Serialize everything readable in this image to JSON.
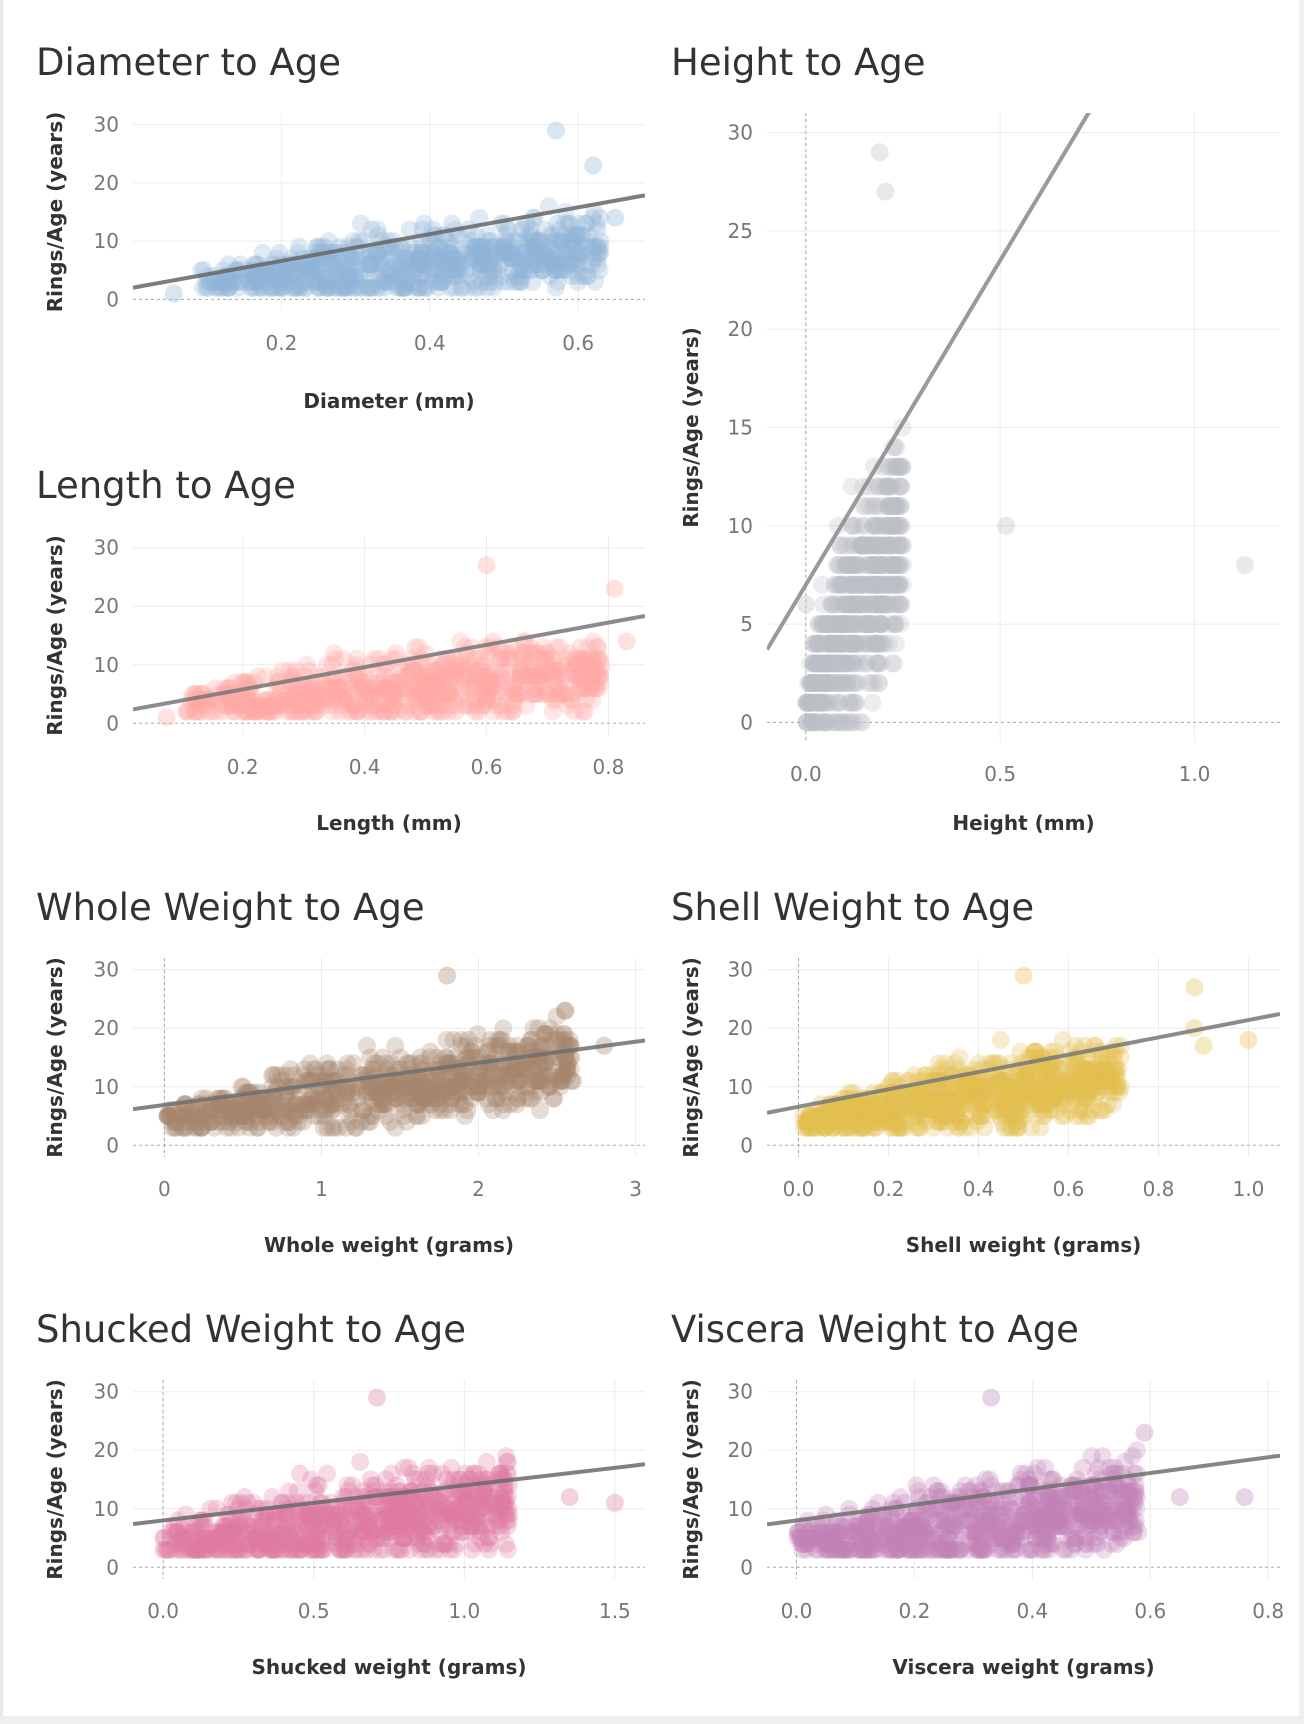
{
  "chart_data": [
    {
      "id": "diameter",
      "type": "scatter",
      "title": "Diameter to Age",
      "xlabel": "Diameter (mm)",
      "ylabel": "Rings/Age (years)",
      "xlim": [
        0.0,
        0.69
      ],
      "ylim": [
        -2,
        32
      ],
      "xticks": [
        0.2,
        0.4,
        0.6
      ],
      "xtick_labels": [
        "0.2",
        "0.4",
        "0.6"
      ],
      "yticks": [
        0,
        10,
        20,
        30
      ],
      "ytick_labels": [
        "0",
        "10",
        "20",
        "30"
      ],
      "zero_line_x": null,
      "color": "#8fb4d9",
      "cloud": {
        "x_min": 0.09,
        "x_max": 0.63,
        "y_base": 3,
        "slope": 22,
        "spread": 9,
        "y_cap": 29,
        "n": 700
      },
      "outliers": [
        [
          0.055,
          1
        ],
        [
          0.62,
          23
        ],
        [
          0.65,
          14
        ],
        [
          0.57,
          29
        ]
      ],
      "trend": {
        "intercept": 2.0,
        "slope": 23.0
      },
      "trend_color": "#666666",
      "grid": true
    },
    {
      "id": "height",
      "type": "scatter",
      "title": "Height to Age",
      "xlabel": "Height (mm)",
      "ylabel": "Rings/Age (years)",
      "xlim": [
        -0.1,
        1.22
      ],
      "ylim": [
        -1,
        31
      ],
      "xticks": [
        0.0,
        0.5,
        1.0
      ],
      "xtick_labels": [
        "0.0",
        "0.5",
        "1.0"
      ],
      "yticks": [
        0,
        5,
        10,
        15,
        20,
        25,
        30
      ],
      "ytick_labels": [
        "0",
        "5",
        "10",
        "15",
        "20",
        "25",
        "30"
      ],
      "zero_line_x": 0,
      "color": "#b9bfc4",
      "cloud": {
        "x_min": 0.0,
        "x_max": 0.25,
        "y_base": 1,
        "slope": 70,
        "spread": 8,
        "y_cap": 29,
        "n": 650
      },
      "outliers": [
        [
          0.515,
          10
        ],
        [
          1.13,
          8
        ],
        [
          0.0,
          6
        ],
        [
          0.0,
          1
        ],
        [
          0.19,
          29
        ],
        [
          0.205,
          27
        ]
      ],
      "trend": {
        "intercept": 7.0,
        "slope": 33.0
      },
      "trend_color": "#888888",
      "grid": true
    },
    {
      "id": "length",
      "type": "scatter",
      "title": "Length to Age",
      "xlabel": "Length (mm)",
      "ylabel": "Rings/Age (years)",
      "xlim": [
        0.02,
        0.86
      ],
      "ylim": [
        -2,
        32
      ],
      "xticks": [
        0.2,
        0.4,
        0.6,
        0.8
      ],
      "xtick_labels": [
        "0.2",
        "0.4",
        "0.6",
        "0.8"
      ],
      "yticks": [
        0,
        10,
        20,
        30
      ],
      "ytick_labels": [
        "0",
        "10",
        "20",
        "30"
      ],
      "zero_line_x": null,
      "color": "#ffaaa5",
      "cloud": {
        "x_min": 0.1,
        "x_max": 0.79,
        "y_base": 3,
        "slope": 17,
        "spread": 9,
        "y_cap": 27,
        "n": 700
      },
      "outliers": [
        [
          0.075,
          1
        ],
        [
          0.81,
          23
        ],
        [
          0.83,
          14
        ],
        [
          0.6,
          27
        ]
      ],
      "trend": {
        "intercept": 2.0,
        "slope": 19.0
      },
      "trend_color": "#777777",
      "grid": true
    },
    {
      "id": "whole",
      "type": "scatter",
      "title": "Whole Weight to Age",
      "xlabel": "Whole weight (grams)",
      "ylabel": "Rings/Age (years)",
      "xlim": [
        -0.2,
        3.06
      ],
      "ylim": [
        -2,
        32
      ],
      "xticks": [
        0,
        1,
        2,
        3
      ],
      "xtick_labels": [
        "0",
        "1",
        "2",
        "3"
      ],
      "yticks": [
        0,
        10,
        20,
        30
      ],
      "ytick_labels": [
        "0",
        "10",
        "20",
        "30"
      ],
      "zero_line_x": 0,
      "color": "#a7866c",
      "cloud": {
        "x_min": 0.0,
        "x_max": 2.6,
        "y_base": 4,
        "slope": 8,
        "spread": 9,
        "y_cap": 27,
        "n": 800
      },
      "outliers": [
        [
          2.55,
          23
        ],
        [
          2.8,
          17
        ],
        [
          1.8,
          29
        ],
        [
          2.6,
          11
        ]
      ],
      "trend": {
        "intercept": 6.9,
        "slope": 3.6
      },
      "trend_color": "#6e6e6e",
      "grid": true
    },
    {
      "id": "shell",
      "type": "scatter",
      "title": "Shell Weight to Age",
      "xlabel": "Shell weight (grams)",
      "ylabel": "Rings/Age (years)",
      "xlim": [
        -0.07,
        1.07
      ],
      "ylim": [
        -2,
        32
      ],
      "xticks": [
        0.0,
        0.2,
        0.4,
        0.6,
        0.8,
        1.0
      ],
      "xtick_labels": [
        "0.0",
        "0.2",
        "0.4",
        "0.6",
        "0.8",
        "1.0"
      ],
      "yticks": [
        0,
        10,
        20,
        30
      ],
      "ytick_labels": [
        "0",
        "10",
        "20",
        "30"
      ],
      "zero_line_x": 0,
      "color": "#e2c04f",
      "cloud": {
        "x_min": 0.0,
        "x_max": 0.72,
        "y_base": 4,
        "slope": 22,
        "spread": 9,
        "y_cap": 27,
        "n": 800
      },
      "outliers": [
        [
          0.88,
          20
        ],
        [
          0.9,
          17
        ],
        [
          1.0,
          18
        ],
        [
          0.88,
          27
        ],
        [
          0.5,
          29
        ]
      ],
      "trend": {
        "intercept": 6.6,
        "slope": 14.8
      },
      "trend_color": "#777777",
      "grid": true
    },
    {
      "id": "shucked",
      "type": "scatter",
      "title": "Shucked Weight to Age",
      "xlabel": "Shucked weight (grams)",
      "ylabel": "Rings/Age (years)",
      "xlim": [
        -0.1,
        1.6
      ],
      "ylim": [
        -2,
        32
      ],
      "xticks": [
        0.0,
        0.5,
        1.0,
        1.5
      ],
      "xtick_labels": [
        "0.0",
        "0.5",
        "1.0",
        "1.5"
      ],
      "yticks": [
        0,
        10,
        20,
        30
      ],
      "ytick_labels": [
        "0",
        "10",
        "20",
        "30"
      ],
      "zero_line_x": 0,
      "color": "#e07aa0",
      "cloud": {
        "x_min": 0.0,
        "x_max": 1.15,
        "y_base": 4,
        "slope": 12,
        "spread": 11,
        "y_cap": 28,
        "n": 800
      },
      "outliers": [
        [
          1.35,
          12
        ],
        [
          1.5,
          11
        ],
        [
          1.12,
          15
        ],
        [
          0.71,
          29
        ]
      ],
      "trend": {
        "intercept": 8.0,
        "slope": 6.0
      },
      "trend_color": "#6a6a6a",
      "grid": true
    },
    {
      "id": "viscera",
      "type": "scatter",
      "title": "Viscera Weight to Age",
      "xlabel": "Viscera weight (grams)",
      "ylabel": "Rings/Age (years)",
      "xlim": [
        -0.05,
        0.82
      ],
      "ylim": [
        -2,
        32
      ],
      "xticks": [
        0.0,
        0.2,
        0.4,
        0.6,
        0.8
      ],
      "xtick_labels": [
        "0.0",
        "0.2",
        "0.4",
        "0.6",
        "0.8"
      ],
      "yticks": [
        0,
        10,
        20,
        30
      ],
      "ytick_labels": [
        "0",
        "10",
        "20",
        "30"
      ],
      "zero_line_x": 0,
      "color": "#c183b6",
      "cloud": {
        "x_min": 0.0,
        "x_max": 0.58,
        "y_base": 4,
        "slope": 23,
        "spread": 11,
        "y_cap": 27,
        "n": 800
      },
      "outliers": [
        [
          0.65,
          12
        ],
        [
          0.76,
          12
        ],
        [
          0.59,
          23
        ],
        [
          0.33,
          29
        ]
      ],
      "trend": {
        "intercept": 8.0,
        "slope": 13.5
      },
      "trend_color": "#707070",
      "grid": true
    }
  ]
}
